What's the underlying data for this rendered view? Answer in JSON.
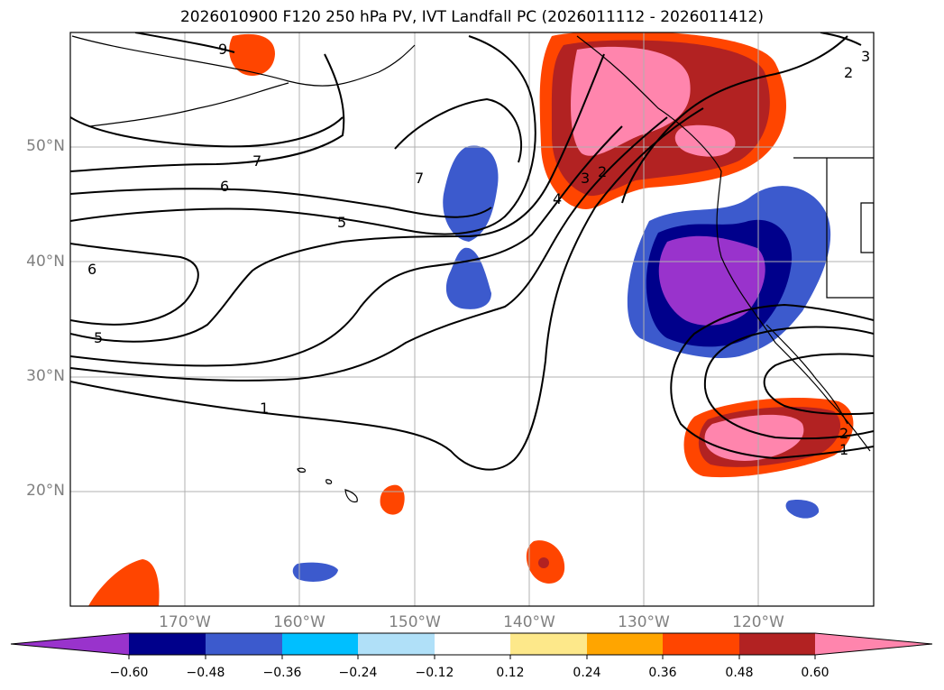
{
  "title": "2026010900 F120 250 hPa PV, IVT Landfall PC (2026011112 - 2026011412)",
  "map": {
    "latitude_labels": [
      "50°N",
      "40°N",
      "30°N",
      "20°N"
    ],
    "longitude_labels": [
      "170°W",
      "160°W",
      "150°W",
      "140°W",
      "130°W",
      "120°W"
    ],
    "contour_labels": [
      "9",
      "7",
      "7",
      "6",
      "6",
      "5",
      "5",
      "4",
      "3",
      "2",
      "1",
      "2",
      "3",
      "2",
      "1"
    ]
  },
  "colorbar": {
    "tick_labels": [
      "−0.60",
      "−0.48",
      "−0.36",
      "−0.24",
      "−0.12",
      "0.12",
      "0.24",
      "0.36",
      "0.48",
      "0.60"
    ],
    "colors": [
      "#9933cc",
      "#00008b",
      "#3c5acd",
      "#00bfff",
      "#b0e0f8",
      "#ffffff",
      "#fde88a",
      "#ffa500",
      "#ff4500",
      "#b22222",
      "#ff85ad"
    ]
  }
}
